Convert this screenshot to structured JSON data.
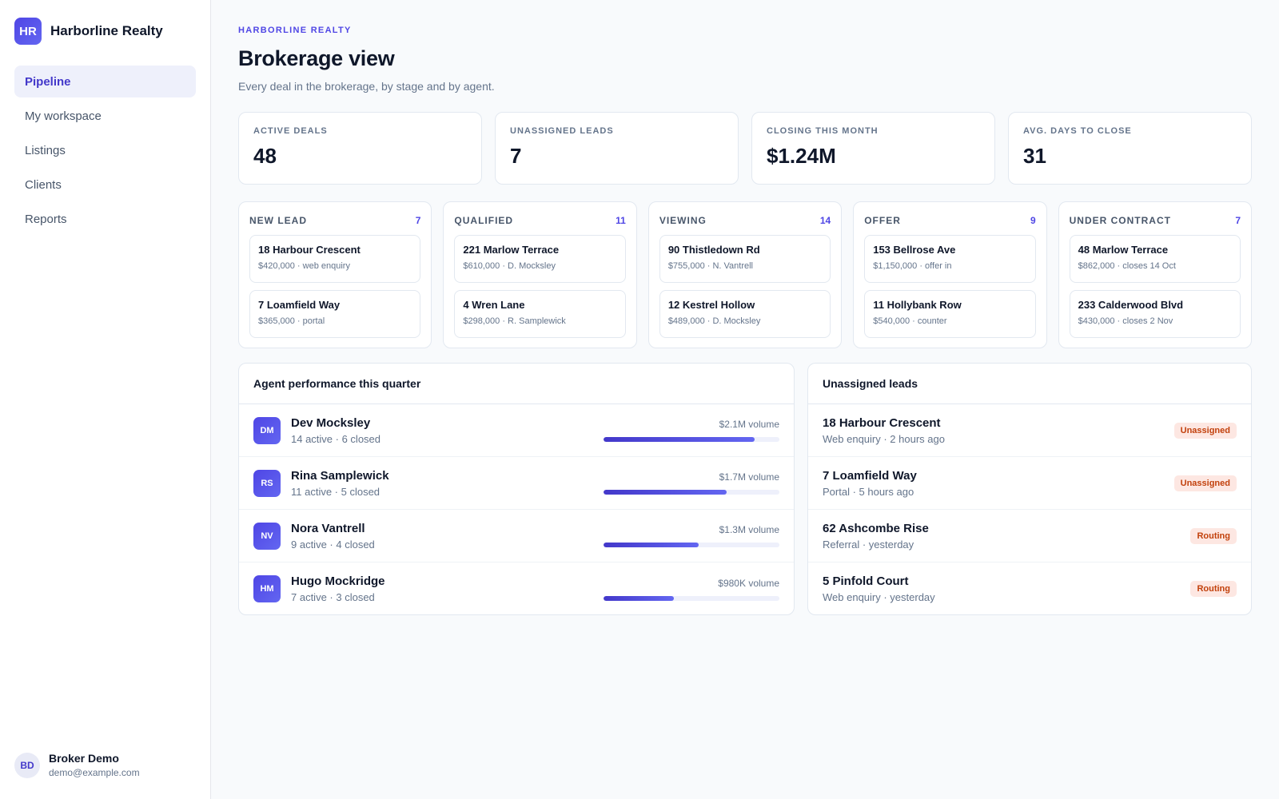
{
  "brand": {
    "logo": "HR",
    "name": "Harborline Realty"
  },
  "nav": [
    {
      "label": "Pipeline",
      "active": true
    },
    {
      "label": "My workspace"
    },
    {
      "label": "Listings"
    },
    {
      "label": "Clients"
    },
    {
      "label": "Reports"
    }
  ],
  "user": {
    "initials": "BD",
    "name": "Broker Demo",
    "email": "demo@example.com"
  },
  "header": {
    "eyebrow": "HARBORLINE REALTY",
    "title": "Brokerage view",
    "subtitle": "Every deal in the brokerage, by stage and by agent."
  },
  "kpis": [
    {
      "label": "ACTIVE DEALS",
      "value": "48"
    },
    {
      "label": "UNASSIGNED LEADS",
      "value": "7"
    },
    {
      "label": "CLOSING THIS MONTH",
      "value": "$1.24M"
    },
    {
      "label": "AVG. DAYS TO CLOSE",
      "value": "31"
    }
  ],
  "stages": [
    {
      "name": "NEW LEAD",
      "count": "7",
      "deals": [
        {
          "title": "18 Harbour Crescent",
          "meta": "$420,000 · web enquiry"
        },
        {
          "title": "7 Loamfield Way",
          "meta": "$365,000 · portal"
        }
      ]
    },
    {
      "name": "QUALIFIED",
      "count": "11",
      "deals": [
        {
          "title": "221 Marlow Terrace",
          "meta": "$610,000 · D. Mocksley"
        },
        {
          "title": "4 Wren Lane",
          "meta": "$298,000 · R. Samplewick"
        }
      ]
    },
    {
      "name": "VIEWING",
      "count": "14",
      "deals": [
        {
          "title": "90 Thistledown Rd",
          "meta": "$755,000 · N. Vantrell"
        },
        {
          "title": "12 Kestrel Hollow",
          "meta": "$489,000 · D. Mocksley"
        }
      ]
    },
    {
      "name": "OFFER",
      "count": "9",
      "deals": [
        {
          "title": "153 Bellrose Ave",
          "meta": "$1,150,000 · offer in"
        },
        {
          "title": "11 Hollybank Row",
          "meta": "$540,000 · counter"
        }
      ]
    },
    {
      "name": "UNDER CONTRACT",
      "count": "7",
      "deals": [
        {
          "title": "48 Marlow Terrace",
          "meta": "$862,000 · closes 14 Oct"
        },
        {
          "title": "233 Calderwood Blvd",
          "meta": "$430,000 · closes 2 Nov"
        }
      ]
    }
  ],
  "agents_panel": {
    "title": "Agent performance this quarter",
    "agents": [
      {
        "initials": "DM",
        "name": "Dev Mocksley",
        "stats": "14 active · 6 closed",
        "volume": "$2.1M volume",
        "share": 0.86
      },
      {
        "initials": "RS",
        "name": "Rina Samplewick",
        "stats": "11 active · 5 closed",
        "volume": "$1.7M volume",
        "share": 0.7
      },
      {
        "initials": "NV",
        "name": "Nora Vantrell",
        "stats": "9 active · 4 closed",
        "volume": "$1.3M volume",
        "share": 0.54
      },
      {
        "initials": "HM",
        "name": "Hugo Mockridge",
        "stats": "7 active · 3 closed",
        "volume": "$980K volume",
        "share": 0.4
      }
    ]
  },
  "leads_panel": {
    "title": "Unassigned leads",
    "leads": [
      {
        "name": "18 Harbour Crescent",
        "meta": "Web enquiry · 2 hours ago",
        "status": "Unassigned"
      },
      {
        "name": "7 Loamfield Way",
        "meta": "Portal · 5 hours ago",
        "status": "Unassigned"
      },
      {
        "name": "62 Ashcombe Rise",
        "meta": "Referral · yesterday",
        "status": "Routing"
      },
      {
        "name": "5 Pinfold Court",
        "meta": "Web enquiry · yesterday",
        "status": "Routing"
      }
    ]
  },
  "colors": {
    "accent": "#4f46e5",
    "badge_bg": "#fde7e2",
    "badge_text": "#c2410c"
  }
}
